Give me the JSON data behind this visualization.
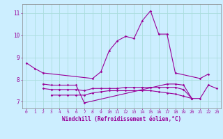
{
  "background_color": "#cceeff",
  "grid_color": "#aadddd",
  "line_color": "#990099",
  "xlabel": "Windchill (Refroidissement éolien,°C)",
  "ylim": [
    6.7,
    11.4
  ],
  "xlim": [
    -0.5,
    23.5
  ],
  "yticks": [
    7,
    8,
    9,
    10,
    11
  ],
  "xticks": [
    0,
    1,
    2,
    3,
    4,
    5,
    6,
    7,
    8,
    9,
    10,
    11,
    12,
    13,
    14,
    15,
    16,
    17,
    18,
    19,
    20,
    21,
    22,
    23
  ],
  "series1_x": [
    0,
    1,
    2,
    8,
    9,
    10,
    11,
    12,
    13,
    14,
    15,
    16,
    17,
    18,
    21,
    22
  ],
  "series1_y": [
    8.75,
    8.5,
    8.3,
    8.05,
    8.35,
    9.3,
    9.75,
    9.95,
    9.85,
    10.65,
    11.1,
    10.05,
    10.05,
    8.3,
    8.05,
    8.25
  ],
  "series2_x": [
    2,
    3,
    4,
    5,
    6,
    7,
    17,
    18,
    19,
    20
  ],
  "series2_y": [
    7.8,
    7.75,
    7.75,
    7.75,
    7.75,
    6.95,
    7.8,
    7.8,
    7.75,
    7.15
  ],
  "series3_x": [
    2,
    3,
    4,
    5,
    6,
    7,
    8,
    9,
    10,
    11,
    12,
    13,
    14,
    15,
    16,
    17,
    18,
    19,
    20,
    21,
    22,
    23
  ],
  "series3_y": [
    7.6,
    7.55,
    7.55,
    7.55,
    7.55,
    7.5,
    7.6,
    7.6,
    7.6,
    7.6,
    7.65,
    7.65,
    7.65,
    7.65,
    7.65,
    7.65,
    7.65,
    7.55,
    7.15,
    7.15,
    7.75,
    7.6
  ],
  "series4_x": [
    3,
    4,
    5,
    6,
    7,
    8,
    9,
    10,
    11,
    12,
    13,
    14,
    15,
    16,
    17,
    18,
    19,
    20
  ],
  "series4_y": [
    7.3,
    7.3,
    7.3,
    7.3,
    7.3,
    7.4,
    7.45,
    7.5,
    7.5,
    7.5,
    7.5,
    7.5,
    7.5,
    7.45,
    7.4,
    7.35,
    7.25,
    7.15
  ]
}
